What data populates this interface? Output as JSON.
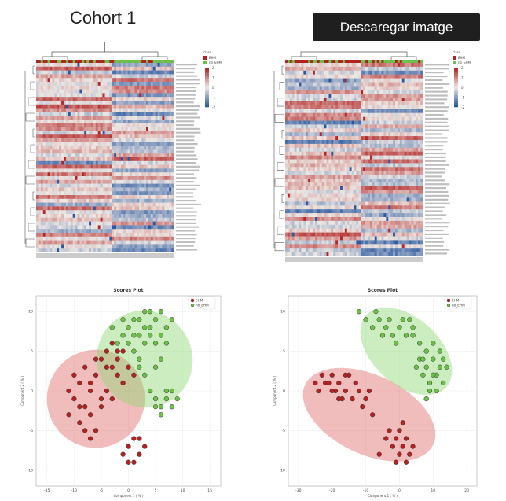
{
  "header": {
    "title": "Cohort 1",
    "download_button": "Descaregar imatge"
  },
  "colors": {
    "ehm": "#b22222",
    "no_ehm": "#6cc04a",
    "heat_high": "#b2182b",
    "heat_mid": "#f7f7f7",
    "heat_low": "#2166ac"
  },
  "heatmaps": [
    {
      "legend_title": "class",
      "legend_groups": [
        "EHM",
        "no_EHM"
      ],
      "scale_ticks": [
        "2",
        "1",
        "0",
        "-1",
        "-2"
      ]
    },
    {
      "legend_title": "class",
      "legend_groups": [
        "EHM",
        "no_EHM"
      ],
      "scale_ticks": [
        "2",
        "1",
        "0",
        "-1",
        "-2"
      ]
    }
  ],
  "chart_data": [
    {
      "type": "scatter",
      "title": "Scores Plot",
      "xlabel": "Component 1 ( % )",
      "ylabel": "Component 2 ( % )",
      "xlim": [
        -17,
        17
      ],
      "ylim": [
        -12,
        12
      ],
      "xticks": [
        "-15",
        "-10",
        "-5",
        "0",
        "5",
        "10",
        "15"
      ],
      "yticks": [
        "10",
        "5",
        "0",
        "-5",
        "-10"
      ],
      "legend": "top-right",
      "series": [
        {
          "name": "EHM",
          "color": "#b22222",
          "points": [
            [
              -10,
              -1
            ],
            [
              -9,
              1
            ],
            [
              -8,
              -2
            ],
            [
              -7,
              0
            ],
            [
              -6,
              2
            ],
            [
              -5,
              -1
            ],
            [
              -11,
              -3
            ],
            [
              -9,
              -4
            ],
            [
              -7,
              -3
            ],
            [
              -6,
              -5
            ],
            [
              -5,
              -2
            ],
            [
              -4,
              0
            ],
            [
              -3,
              3
            ],
            [
              -2,
              2
            ],
            [
              -1,
              1
            ],
            [
              -8,
              3
            ],
            [
              -10,
              2
            ],
            [
              -6,
              4
            ],
            [
              -4,
              5
            ],
            [
              -3,
              6
            ],
            [
              -2,
              4
            ],
            [
              -1,
              5
            ],
            [
              0,
              3
            ],
            [
              1,
              2
            ],
            [
              -9,
              -2
            ],
            [
              -7,
              -6
            ],
            [
              0,
              -7
            ],
            [
              1,
              -6
            ],
            [
              2,
              -8
            ],
            [
              3,
              -7
            ],
            [
              -1,
              -8
            ],
            [
              2,
              -6
            ],
            [
              -5,
              4
            ],
            [
              -4,
              3
            ],
            [
              -2,
              5
            ],
            [
              -7,
              1
            ],
            [
              -11,
              0
            ],
            [
              -8,
              -5
            ],
            [
              -3,
              -1
            ],
            [
              0,
              -9
            ],
            [
              1,
              -9
            ]
          ]
        },
        {
          "name": "no_EHM",
          "color": "#6cc04a",
          "points": [
            [
              -2,
              6
            ],
            [
              0,
              8
            ],
            [
              2,
              7
            ],
            [
              4,
              8
            ],
            [
              5,
              9
            ],
            [
              6,
              7
            ],
            [
              3,
              6
            ],
            [
              1,
              5
            ],
            [
              7,
              8
            ],
            [
              6,
              10
            ],
            [
              4,
              10
            ],
            [
              2,
              9
            ],
            [
              -1,
              9
            ],
            [
              1,
              7
            ],
            [
              3,
              8
            ],
            [
              5,
              6
            ],
            [
              7,
              -1
            ],
            [
              8,
              -2
            ],
            [
              6,
              -3
            ],
            [
              5,
              -1
            ],
            [
              7,
              0
            ],
            [
              8,
              0
            ],
            [
              6,
              -2
            ],
            [
              4,
              0
            ],
            [
              3,
              2
            ],
            [
              2,
              4
            ],
            [
              -1,
              7
            ],
            [
              0,
              6
            ],
            [
              5,
              3
            ],
            [
              6,
              4
            ],
            [
              8,
              9
            ],
            [
              3,
              10
            ],
            [
              9,
              -1
            ],
            [
              5,
              -2
            ],
            [
              4,
              7
            ],
            [
              1,
              9
            ],
            [
              7,
              6
            ],
            [
              -3,
              8
            ],
            [
              2,
              3
            ]
          ]
        }
      ]
    },
    {
      "type": "scatter",
      "title": "Scores Plot",
      "xlabel": "Component 1 ( % )",
      "ylabel": "Component 2 ( % )",
      "xlim": [
        -33,
        23
      ],
      "ylim": [
        -12,
        12
      ],
      "xticks": [
        "-30",
        "-20",
        "-10",
        "0",
        "10",
        "20"
      ],
      "yticks": [
        "10",
        "5",
        "0",
        "-5",
        "-10"
      ],
      "legend": "top-right",
      "series": [
        {
          "name": "EHM",
          "color": "#b22222",
          "points": [
            [
              -22,
              1
            ],
            [
              -20,
              2
            ],
            [
              -18,
              1
            ],
            [
              -16,
              0
            ],
            [
              -15,
              2
            ],
            [
              -19,
              0
            ],
            [
              -21,
              1
            ],
            [
              -17,
              -1
            ],
            [
              -14,
              -1
            ],
            [
              -12,
              0
            ],
            [
              -10,
              -1
            ],
            [
              -13,
              1
            ],
            [
              -24,
              0
            ],
            [
              -23,
              2
            ],
            [
              -11,
              -2
            ],
            [
              -9,
              0
            ],
            [
              -3,
              -5
            ],
            [
              -1,
              -6
            ],
            [
              0,
              -5
            ],
            [
              1,
              -7
            ],
            [
              -2,
              -7
            ],
            [
              2,
              -6
            ],
            [
              3,
              -8
            ],
            [
              0,
              -8
            ],
            [
              -1,
              -9
            ],
            [
              2,
              -9
            ],
            [
              -4,
              -6
            ],
            [
              1,
              -4
            ],
            [
              -16,
              2
            ],
            [
              -18,
              -1
            ],
            [
              -20,
              0
            ],
            [
              -25,
              1
            ],
            [
              -8,
              -3
            ],
            [
              4,
              -7
            ],
            [
              -6,
              -8
            ]
          ]
        },
        {
          "name": "no_EHM",
          "color": "#6cc04a",
          "points": [
            [
              -10,
              9
            ],
            [
              -8,
              8
            ],
            [
              -6,
              9
            ],
            [
              -4,
              8
            ],
            [
              -2,
              7
            ],
            [
              0,
              8
            ],
            [
              2,
              7
            ],
            [
              4,
              8
            ],
            [
              -7,
              10
            ],
            [
              -3,
              9
            ],
            [
              1,
              9
            ],
            [
              3,
              9
            ],
            [
              6,
              4
            ],
            [
              8,
              3
            ],
            [
              10,
              4
            ],
            [
              12,
              3
            ],
            [
              7,
              2
            ],
            [
              9,
              1
            ],
            [
              11,
              2
            ],
            [
              13,
              1
            ],
            [
              5,
              3
            ],
            [
              8,
              5
            ],
            [
              10,
              6
            ],
            [
              12,
              5
            ],
            [
              9,
              0
            ],
            [
              11,
              0
            ],
            [
              14,
              3
            ],
            [
              7,
              4
            ],
            [
              -5,
              7
            ],
            [
              -1,
              6
            ],
            [
              6,
              6
            ],
            [
              4,
              7
            ],
            [
              10,
              2
            ],
            [
              13,
              4
            ],
            [
              -12,
              10
            ],
            [
              8,
              -1
            ]
          ]
        }
      ]
    }
  ]
}
